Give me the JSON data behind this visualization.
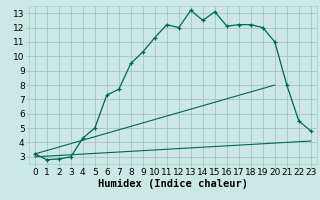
{
  "xlabel": "Humidex (Indice chaleur)",
  "bg_color": "#cce8e4",
  "grid_color": "#aaccc8",
  "line_color": "#006655",
  "xlim": [
    -0.5,
    23.5
  ],
  "ylim": [
    2.5,
    13.5
  ],
  "xticks": [
    0,
    1,
    2,
    3,
    4,
    5,
    6,
    7,
    8,
    9,
    10,
    11,
    12,
    13,
    14,
    15,
    16,
    17,
    18,
    19,
    20,
    21,
    22,
    23
  ],
  "yticks": [
    3,
    4,
    5,
    6,
    7,
    8,
    9,
    10,
    11,
    12,
    13
  ],
  "main_x": [
    0,
    1,
    2,
    3,
    4,
    5,
    6,
    7,
    8,
    9,
    10,
    11,
    12,
    13,
    14,
    15,
    16,
    17,
    18,
    19,
    20,
    21,
    22,
    23
  ],
  "main_y": [
    3.2,
    2.8,
    2.85,
    3.0,
    4.3,
    5.0,
    7.3,
    7.7,
    9.5,
    10.3,
    11.3,
    12.2,
    12.0,
    13.2,
    12.5,
    13.1,
    12.1,
    12.2,
    12.2,
    12.0,
    11.0,
    8.0,
    5.5,
    4.8
  ],
  "line2_x": [
    0,
    20
  ],
  "line2_y": [
    3.2,
    8.0
  ],
  "line3_x": [
    0,
    23
  ],
  "line3_y": [
    3.0,
    4.1
  ],
  "xlabel_fontsize": 7.5,
  "tick_fontsize": 6.5
}
